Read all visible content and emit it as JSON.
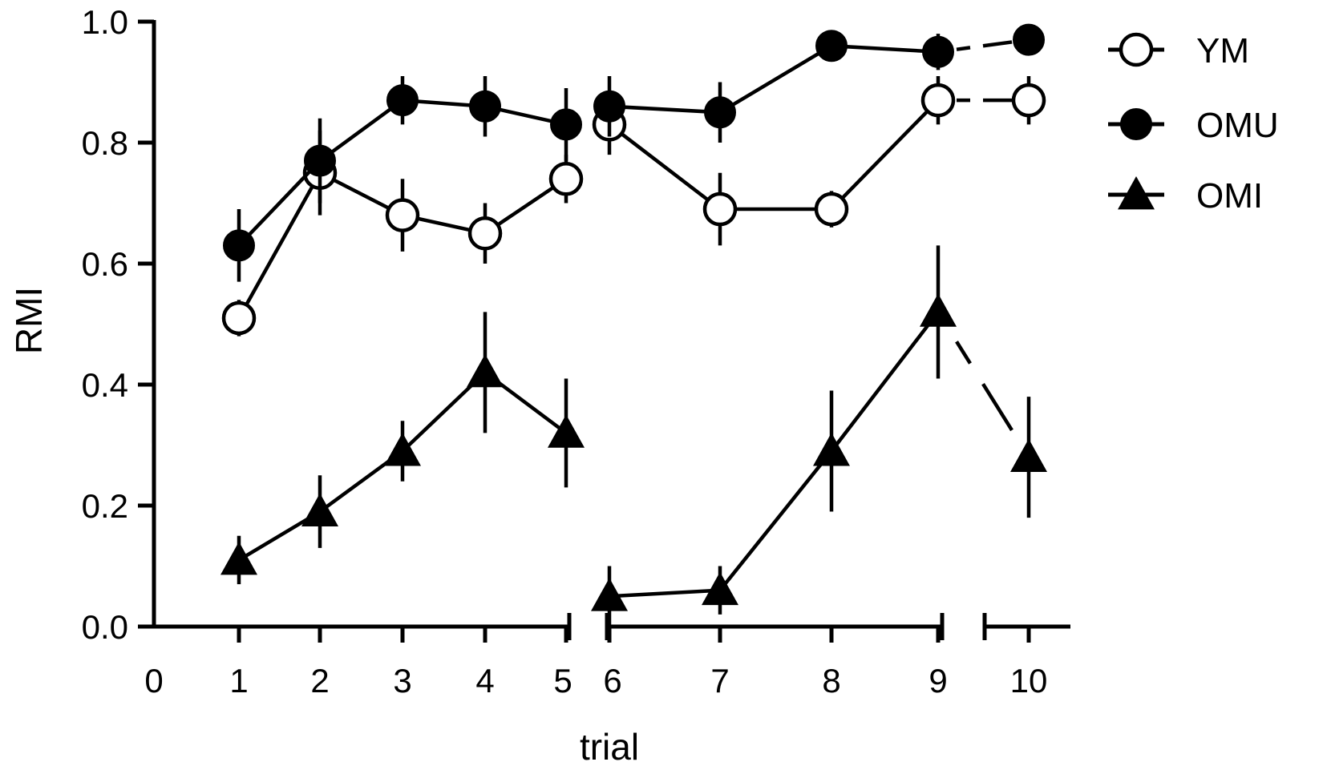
{
  "chart_data": {
    "type": "line",
    "title": "",
    "xlabel": "trial",
    "ylabel": "RMI",
    "ylim": [
      0,
      1.0
    ],
    "xlim": [
      0,
      10
    ],
    "x_ticks": [
      "0",
      "1",
      "2",
      "3",
      "4",
      "5",
      "6",
      "7",
      "8",
      "9",
      "10"
    ],
    "y_ticks": [
      "0.0",
      "0.2",
      "0.4",
      "0.6",
      "0.8",
      "1.0"
    ],
    "axis_breaks": [
      "between 5 and 6",
      "between 9 and 10"
    ],
    "grid": false,
    "legend_position": "top-right",
    "x": [
      1,
      2,
      3,
      4,
      5,
      6,
      7,
      8,
      9,
      10
    ],
    "series": [
      {
        "name": "YM",
        "marker": "open-circle",
        "color": "#000000",
        "values": [
          0.51,
          0.75,
          0.68,
          0.65,
          0.74,
          0.83,
          0.69,
          0.69,
          0.87,
          0.87
        ],
        "errors": [
          0.03,
          0.07,
          0.06,
          0.05,
          0.04,
          0.05,
          0.06,
          0.03,
          0.04,
          0.04
        ]
      },
      {
        "name": "OMU",
        "marker": "filled-circle",
        "color": "#000000",
        "values": [
          0.63,
          0.77,
          0.87,
          0.86,
          0.83,
          0.86,
          0.85,
          0.96,
          0.95,
          0.97
        ],
        "errors": [
          0.06,
          0.07,
          0.04,
          0.05,
          0.06,
          0.05,
          0.05,
          0.02,
          0.03,
          0.02
        ]
      },
      {
        "name": "OMI",
        "marker": "filled-triangle",
        "color": "#000000",
        "values": [
          0.11,
          0.19,
          0.29,
          0.42,
          0.32,
          0.05,
          0.06,
          0.29,
          0.52,
          0.28
        ],
        "errors": [
          0.04,
          0.06,
          0.05,
          0.1,
          0.09,
          0.05,
          0.04,
          0.1,
          0.11,
          0.1
        ]
      }
    ]
  }
}
